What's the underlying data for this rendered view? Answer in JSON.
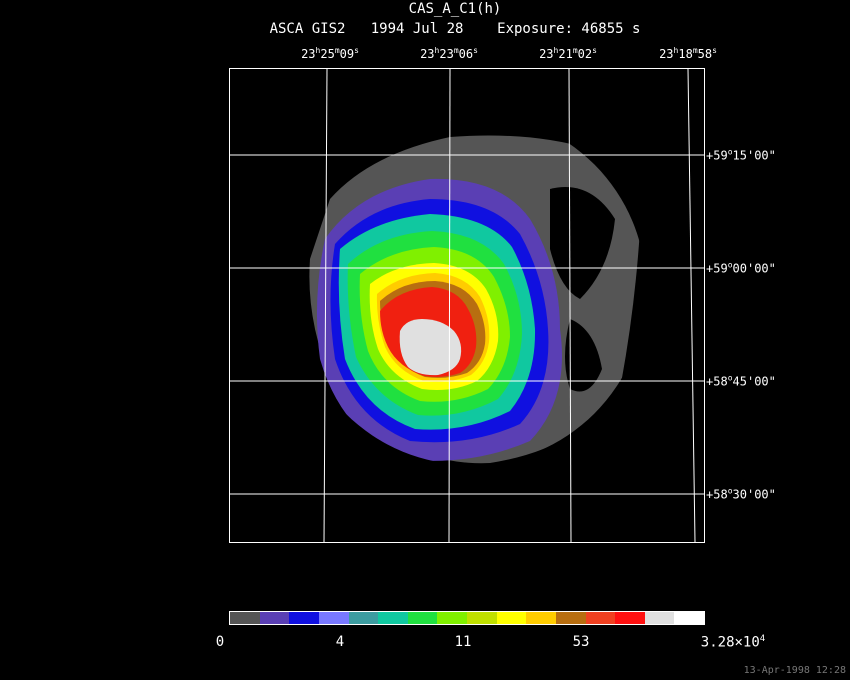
{
  "title": "CAS_A_C1(h)",
  "subtitle": "ASCA GIS2   1994 Jul 28    Exposure: 46855 s",
  "ra_labels": [
    {
      "h": "23",
      "m": "25",
      "s": "09"
    },
    {
      "h": "23",
      "m": "23",
      "s": "06"
    },
    {
      "h": "23",
      "m": "21",
      "s": "02"
    },
    {
      "h": "23",
      "m": "18",
      "s": "58"
    }
  ],
  "dec_labels": [
    {
      "d": "59",
      "rest": "15'00\""
    },
    {
      "d": "59",
      "rest": "00'00\""
    },
    {
      "d": "58",
      "rest": "45'00\""
    },
    {
      "d": "58",
      "rest": "30'00\""
    }
  ],
  "colorbar": {
    "colors": [
      "#555555",
      "#5a3fb4",
      "#1010e0",
      "#7878ff",
      "#3c9ca0",
      "#10c8a0",
      "#20e040",
      "#80f000",
      "#c0e000",
      "#ffff00",
      "#ffcc00",
      "#b86e10",
      "#f04020",
      "#ff1010",
      "#e0e0e0",
      "#ffffff"
    ],
    "labels": [
      "0",
      "4",
      "11",
      "53"
    ],
    "max_mantissa": "3.28×10",
    "max_exp": "4"
  },
  "timestamp": "13-Apr-1998 12:28",
  "image_levels": {
    "background": "#000000",
    "gray": "#555555",
    "violet": "#5a3fb4",
    "blue": "#1010e0",
    "teal": "#10c8a0",
    "green": "#20e040",
    "lime": "#80f000",
    "yellow": "#ffff00",
    "orange": "#ffcc00",
    "brown": "#b86e10",
    "red": "#f02010",
    "core": "#e0e0e0"
  }
}
